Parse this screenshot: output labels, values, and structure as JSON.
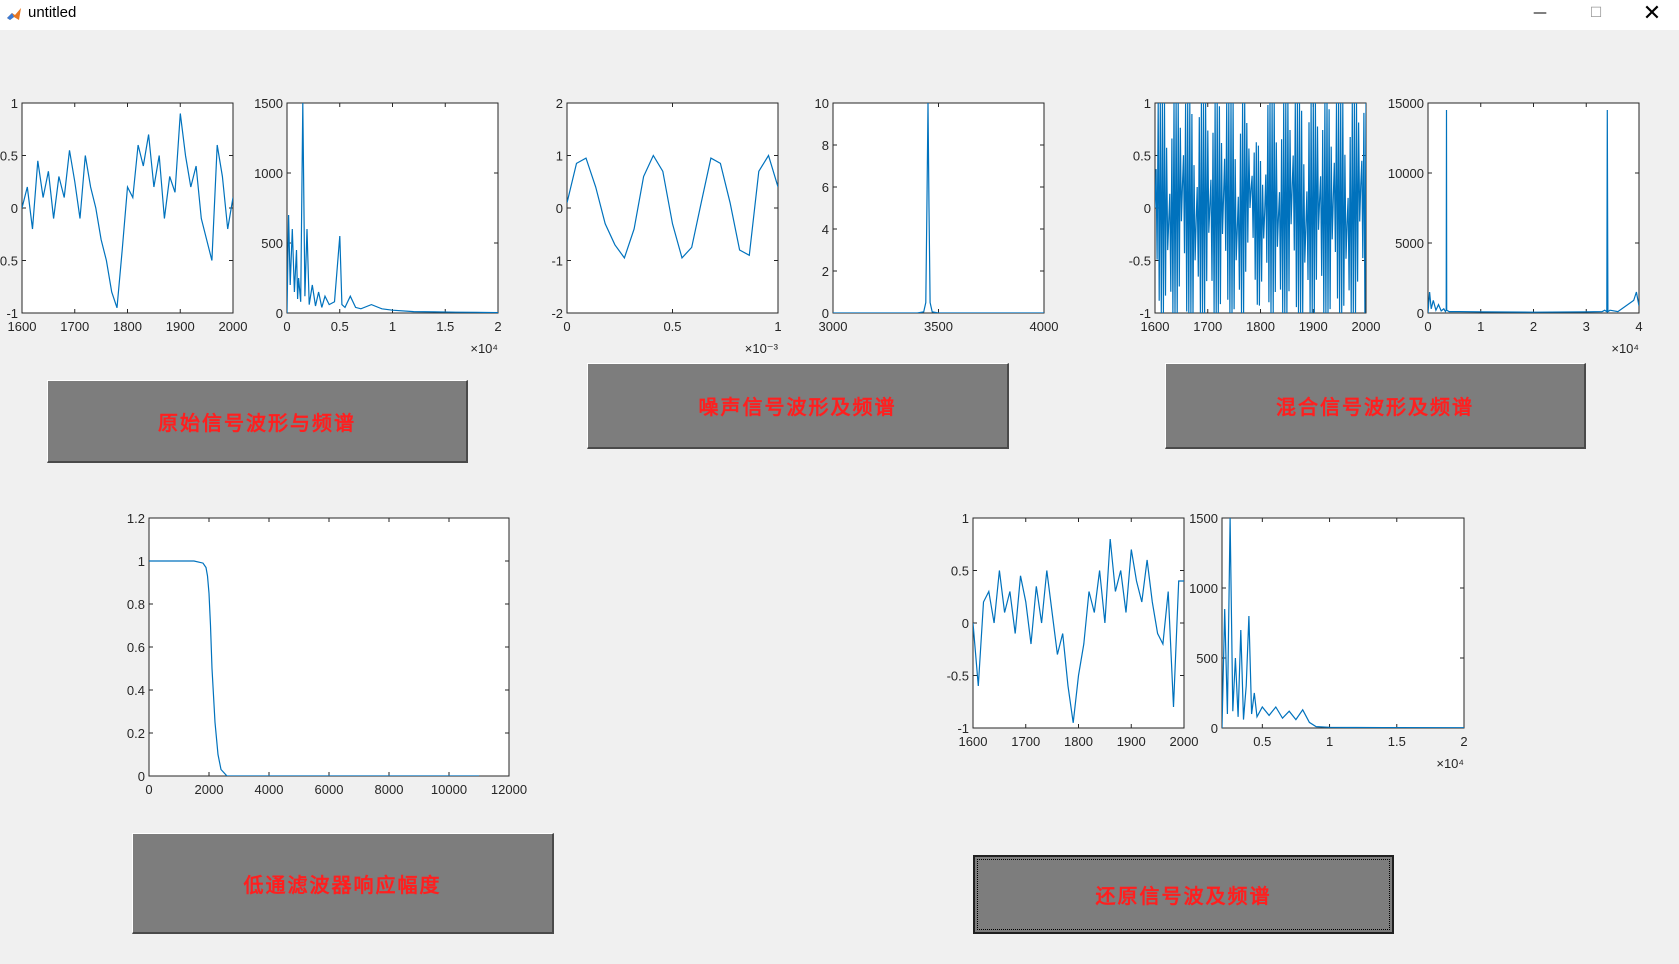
{
  "window": {
    "title": "untitled",
    "minimize_glyph": "—",
    "maximize_glyph": "☐",
    "close_glyph": "✕",
    "icon": "matlab-icon"
  },
  "buttons": {
    "original": "原始信号波形与频谱",
    "noise": "噪声信号波形及频谱",
    "mixed": "混合信号波形及频谱",
    "lowpass": "低通滤波器响应幅度",
    "restored": "还原信号波及频谱"
  },
  "colors": {
    "line": "#0072bd",
    "button_bg": "#7d7d7d",
    "button_text": "#ff1f1f",
    "figure_bg": "#f0f0f0"
  },
  "chart_data": [
    {
      "id": "orig-wave",
      "type": "line",
      "title": "",
      "xlim": [
        1600,
        2000
      ],
      "ylim": [
        -1,
        1
      ],
      "xticks": [
        "1600",
        "1700",
        "1800",
        "1900",
        "2000"
      ],
      "yticks": [
        "-1",
        "-0.5",
        "0",
        "0.5",
        "1"
      ],
      "exponent": "",
      "x": [
        1600,
        1610,
        1620,
        1630,
        1640,
        1650,
        1660,
        1670,
        1680,
        1690,
        1700,
        1710,
        1720,
        1730,
        1740,
        1750,
        1760,
        1770,
        1780,
        1790,
        1800,
        1810,
        1820,
        1830,
        1840,
        1850,
        1860,
        1870,
        1880,
        1890,
        1900,
        1910,
        1920,
        1930,
        1940,
        1950,
        1960,
        1970,
        1980,
        1990,
        2000
      ],
      "y": [
        0,
        0.2,
        -0.2,
        0.45,
        0.1,
        0.35,
        -0.1,
        0.3,
        0.1,
        0.55,
        0.25,
        -0.1,
        0.5,
        0.2,
        0.0,
        -0.3,
        -0.5,
        -0.8,
        -0.95,
        -0.4,
        0.2,
        0.1,
        0.6,
        0.4,
        0.7,
        0.2,
        0.5,
        -0.1,
        0.3,
        0.15,
        0.9,
        0.5,
        0.2,
        0.4,
        -0.1,
        -0.3,
        -0.5,
        0.6,
        0.3,
        -0.2,
        0.1
      ]
    },
    {
      "id": "orig-spec",
      "type": "line",
      "title": "",
      "xlim": [
        0,
        20000
      ],
      "ylim": [
        0,
        1500
      ],
      "xticks": [
        "0",
        "0.5",
        "1",
        "1.5",
        "2"
      ],
      "yticks": [
        "0",
        "500",
        "1000",
        "1500"
      ],
      "exponent": "×10⁴",
      "x": [
        0,
        150,
        300,
        500,
        700,
        900,
        1000,
        1100,
        1300,
        1500,
        1700,
        1900,
        2100,
        2400,
        2700,
        3000,
        3300,
        3600,
        4000,
        4500,
        5000,
        5200,
        5500,
        6000,
        6500,
        7000,
        8000,
        9000,
        10000,
        12000,
        14000,
        16000,
        18000,
        20000
      ],
      "y": [
        0,
        700,
        200,
        600,
        150,
        450,
        100,
        250,
        80,
        1500,
        120,
        600,
        60,
        200,
        50,
        150,
        40,
        120,
        60,
        80,
        550,
        60,
        40,
        120,
        40,
        30,
        60,
        30,
        20,
        10,
        8,
        6,
        5,
        3
      ]
    },
    {
      "id": "noise-wave",
      "type": "line",
      "title": "",
      "xlim": [
        0,
        0.001
      ],
      "ylim": [
        -2,
        2
      ],
      "xticks": [
        "0",
        "0.5",
        "1"
      ],
      "yticks": [
        "-2",
        "-1",
        "0",
        "1",
        "2"
      ],
      "exponent": "×10⁻³",
      "x": [
        0,
        4.5e-05,
        9e-05,
        0.000136,
        0.000181,
        0.000227,
        0.000272,
        0.000318,
        0.000363,
        0.000409,
        0.000454,
        0.0005,
        0.000545,
        0.000591,
        0.000636,
        0.000682,
        0.000727,
        0.000773,
        0.000818,
        0.000864,
        0.000909,
        0.000955,
        0.001
      ],
      "y": [
        0.1,
        0.85,
        0.95,
        0.4,
        -0.3,
        -0.7,
        -0.95,
        -0.4,
        0.6,
        1.0,
        0.7,
        -0.3,
        -0.95,
        -0.75,
        0.1,
        0.95,
        0.85,
        0.1,
        -0.8,
        -0.9,
        0.7,
        1.0,
        0.4
      ]
    },
    {
      "id": "noise-spec",
      "type": "line",
      "title": "",
      "xlim": [
        3000,
        4000
      ],
      "ylim": [
        0,
        10
      ],
      "xticks": [
        "3000",
        "3500",
        "4000"
      ],
      "yticks": [
        "0",
        "2",
        "4",
        "6",
        "8",
        "10"
      ],
      "exponent": "",
      "x": [
        3000,
        3400,
        3430,
        3440,
        3445,
        3450,
        3455,
        3460,
        3470,
        3500,
        4000
      ],
      "y": [
        0,
        0,
        0.05,
        0.5,
        5,
        10,
        5,
        0.5,
        0.05,
        0,
        0
      ]
    },
    {
      "id": "mixed-wave",
      "type": "line",
      "title": "",
      "xlim": [
        1600,
        2000
      ],
      "ylim": [
        -1,
        1
      ],
      "xticks": [
        "1600",
        "1700",
        "1800",
        "1900",
        "2000"
      ],
      "yticks": [
        "-1",
        "-0.5",
        "0",
        "0.5",
        "1"
      ],
      "exponent": "",
      "style": "dense-oscillation"
    },
    {
      "id": "mixed-spec",
      "type": "line",
      "title": "",
      "xlim": [
        0,
        40000
      ],
      "ylim": [
        0,
        15000
      ],
      "xticks": [
        "0",
        "1",
        "2",
        "3",
        "4"
      ],
      "yticks": [
        "0",
        "5000",
        "10000",
        "15000"
      ],
      "exponent": "×10⁴",
      "x": [
        0,
        300,
        600,
        1000,
        1500,
        2000,
        2500,
        3000,
        3300,
        3450,
        3500,
        3550,
        4000,
        6000,
        10000,
        20000,
        30000,
        33000,
        33500,
        33900,
        34000,
        34100,
        34500,
        36000,
        39000,
        39500,
        40000
      ],
      "y": [
        0,
        1500,
        300,
        900,
        200,
        600,
        150,
        300,
        100,
        200,
        14500,
        200,
        100,
        100,
        80,
        60,
        80,
        100,
        200,
        100,
        14500,
        100,
        200,
        100,
        900,
        1500,
        500
      ]
    },
    {
      "id": "lowpass-response",
      "type": "line",
      "title": "",
      "xlim": [
        0,
        12000
      ],
      "ylim": [
        0,
        1.2
      ],
      "xticks": [
        "0",
        "2000",
        "4000",
        "6000",
        "8000",
        "10000",
        "12000"
      ],
      "yticks": [
        "0",
        "0.2",
        "0.4",
        "0.6",
        "0.8",
        "1",
        "1.2"
      ],
      "exponent": "",
      "x": [
        0,
        1500,
        1800,
        1900,
        1950,
        2000,
        2050,
        2100,
        2200,
        2300,
        2400,
        2600,
        3000,
        11000
      ],
      "y": [
        1,
        1,
        0.99,
        0.97,
        0.93,
        0.85,
        0.7,
        0.5,
        0.25,
        0.1,
        0.03,
        0,
        0,
        0
      ]
    },
    {
      "id": "restored-wave",
      "type": "line",
      "title": "",
      "xlim": [
        1600,
        2000
      ],
      "ylim": [
        -1,
        1
      ],
      "xticks": [
        "1600",
        "1700",
        "1800",
        "1900",
        "2000"
      ],
      "yticks": [
        "-1",
        "-0.5",
        "0",
        "0.5",
        "1"
      ],
      "exponent": "",
      "x": [
        1600,
        1610,
        1620,
        1630,
        1640,
        1650,
        1660,
        1670,
        1680,
        1690,
        1700,
        1710,
        1720,
        1730,
        1740,
        1750,
        1760,
        1770,
        1780,
        1790,
        1800,
        1810,
        1820,
        1830,
        1840,
        1850,
        1860,
        1870,
        1880,
        1890,
        1900,
        1910,
        1920,
        1930,
        1940,
        1950,
        1960,
        1970,
        1980,
        1990,
        2000
      ],
      "y": [
        0,
        -0.6,
        0.2,
        0.3,
        0.0,
        0.5,
        0.1,
        0.3,
        -0.1,
        0.45,
        0.2,
        -0.2,
        0.35,
        0.0,
        0.5,
        0.1,
        -0.3,
        -0.1,
        -0.6,
        -0.95,
        -0.5,
        -0.2,
        0.3,
        0.1,
        0.5,
        0.0,
        0.8,
        0.3,
        0.5,
        0.1,
        0.7,
        0.4,
        0.2,
        0.6,
        0.2,
        -0.1,
        -0.2,
        0.3,
        -0.8,
        0.4,
        0.4
      ]
    },
    {
      "id": "restored-spec",
      "type": "line",
      "title": "",
      "xlim": [
        2000,
        20000
      ],
      "ylim": [
        0,
        1500
      ],
      "xticks": [
        "0.5",
        "1",
        "1.5",
        "2"
      ],
      "yticks": [
        "0",
        "500",
        "1000",
        "1500"
      ],
      "exponent": "×10⁴",
      "x": [
        2000,
        2200,
        2400,
        2600,
        2800,
        3000,
        3200,
        3400,
        3600,
        3800,
        4000,
        4200,
        4400,
        4600,
        5000,
        5500,
        6000,
        6500,
        7000,
        7500,
        8000,
        8500,
        9000,
        10000,
        14000,
        20000
      ],
      "y": [
        0,
        850,
        100,
        1500,
        120,
        500,
        80,
        700,
        60,
        300,
        800,
        100,
        250,
        80,
        150,
        90,
        150,
        70,
        120,
        60,
        130,
        40,
        10,
        5,
        3,
        2
      ]
    }
  ]
}
